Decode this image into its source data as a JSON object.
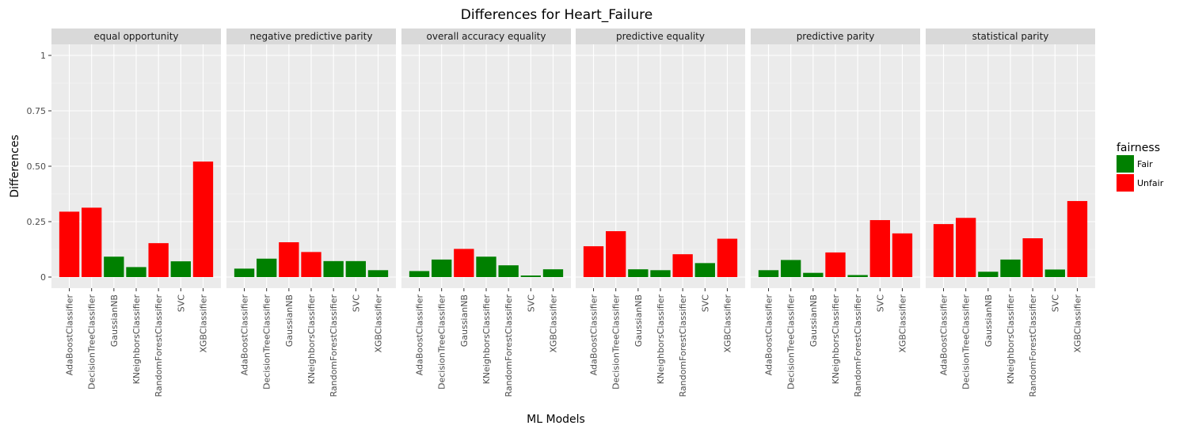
{
  "chart_data": {
    "type": "bar",
    "title": "Differences for Heart_Failure",
    "xlabel": "ML Models",
    "ylabel": "Differences",
    "ylim": [
      0,
      1
    ],
    "yticks": [
      0,
      0.25,
      0.5,
      0.75,
      1
    ],
    "ytick_labels": [
      "0",
      "0.25",
      "0.50",
      "0.75",
      "1"
    ],
    "grid": true,
    "categories": [
      "AdaBoostClassifier",
      "DecisionTreeClassifier",
      "GaussianNB",
      "KNeighborsClassifier",
      "RandomForestClassifier",
      "SVC",
      "XGBClassifier"
    ],
    "legend": {
      "title": "fairness",
      "position": "right",
      "entries": [
        {
          "label": "Fair",
          "color": "#008000"
        },
        {
          "label": "Unfair",
          "color": "#ff0000"
        }
      ]
    },
    "facets": [
      {
        "name": "equal opportunity",
        "values": [
          0.295,
          0.313,
          0.092,
          0.045,
          0.153,
          0.071,
          0.521
        ],
        "fairness": [
          "Unfair",
          "Unfair",
          "Fair",
          "Fair",
          "Unfair",
          "Fair",
          "Unfair"
        ]
      },
      {
        "name": "negative predictive parity",
        "values": [
          0.038,
          0.083,
          0.157,
          0.113,
          0.072,
          0.072,
          0.031
        ],
        "fairness": [
          "Fair",
          "Fair",
          "Unfair",
          "Unfair",
          "Fair",
          "Fair",
          "Fair"
        ]
      },
      {
        "name": "overall accuracy equality",
        "values": [
          0.027,
          0.079,
          0.127,
          0.092,
          0.053,
          0.007,
          0.035
        ],
        "fairness": [
          "Fair",
          "Fair",
          "Unfair",
          "Fair",
          "Fair",
          "Fair",
          "Fair"
        ]
      },
      {
        "name": "predictive equality",
        "values": [
          0.139,
          0.207,
          0.035,
          0.031,
          0.103,
          0.063,
          0.173
        ],
        "fairness": [
          "Unfair",
          "Unfair",
          "Fair",
          "Fair",
          "Unfair",
          "Fair",
          "Unfair"
        ]
      },
      {
        "name": "predictive parity",
        "values": [
          0.031,
          0.077,
          0.019,
          0.111,
          0.009,
          0.257,
          0.197
        ],
        "fairness": [
          "Fair",
          "Fair",
          "Fair",
          "Unfair",
          "Fair",
          "Unfair",
          "Unfair"
        ]
      },
      {
        "name": "statistical parity",
        "values": [
          0.239,
          0.267,
          0.024,
          0.079,
          0.175,
          0.034,
          0.343
        ],
        "fairness": [
          "Unfair",
          "Unfair",
          "Fair",
          "Fair",
          "Unfair",
          "Fair",
          "Unfair"
        ]
      }
    ]
  }
}
